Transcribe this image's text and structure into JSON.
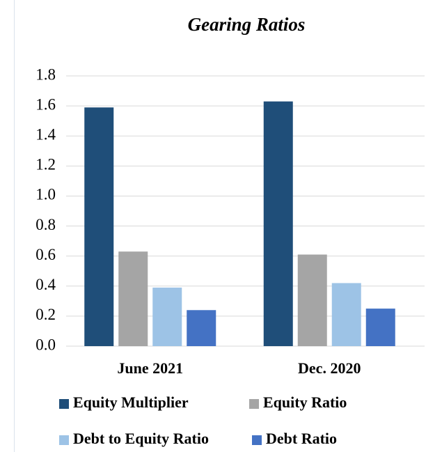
{
  "chart_data": {
    "type": "bar",
    "title": "Gearing Ratios",
    "categories": [
      "June 2021",
      "Dec. 2020"
    ],
    "series": [
      {
        "name": "Equity Multiplier",
        "color": "#1f4e79",
        "values": [
          1.59,
          1.63
        ]
      },
      {
        "name": "Equity Ratio",
        "color": "#a5a5a5",
        "values": [
          0.63,
          0.61
        ]
      },
      {
        "name": "Debt to Equity Ratio",
        "color": "#9dc3e6",
        "values": [
          0.39,
          0.42
        ]
      },
      {
        "name": "Debt Ratio",
        "color": "#4472c4",
        "values": [
          0.24,
          0.25
        ]
      }
    ],
    "ylim": [
      0,
      1.8
    ],
    "yticks": [
      {
        "value": 0,
        "label": "0.0"
      },
      0.2,
      0.4,
      0.6,
      0.8,
      {
        "value": 1,
        "label": "1.0"
      },
      1.2,
      1.4,
      1.6,
      1.8
    ],
    "grid": true,
    "legend": "bottom"
  }
}
